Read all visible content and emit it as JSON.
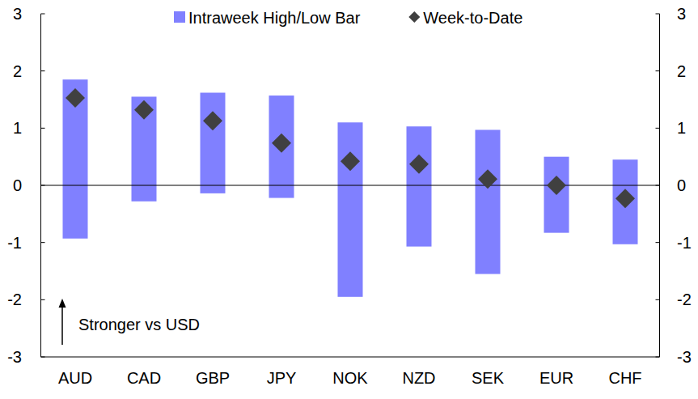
{
  "chart_data": {
    "type": "range_bar",
    "categories": [
      "AUD",
      "CAD",
      "GBP",
      "JPY",
      "NOK",
      "NZD",
      "SEK",
      "EUR",
      "CHF"
    ],
    "series": [
      {
        "name": "Intraweek High/Low Bar",
        "type": "bar",
        "color": "#8080ff",
        "values": [
          1.85,
          1.55,
          1.62,
          1.57,
          1.1,
          1.03,
          0.97,
          0.5,
          0.45
        ],
        "low": [
          -0.93,
          -0.28,
          -0.14,
          -0.22,
          -1.95,
          -1.07,
          -1.55,
          -0.83,
          -1.03
        ]
      },
      {
        "name": "Week-to-Date",
        "type": "scatter",
        "marker": "diamond",
        "color": "#404040",
        "values": [
          1.53,
          1.32,
          1.13,
          0.74,
          0.42,
          0.37,
          0.11,
          0.0,
          -0.23
        ]
      }
    ],
    "ylim": [
      -3,
      3
    ],
    "yticks": [
      -3,
      -2,
      -1,
      0,
      1,
      2,
      3
    ],
    "y2lim": [
      -3,
      3
    ],
    "y2ticks": [
      -3,
      -2,
      -1,
      0,
      1,
      2,
      3
    ],
    "annotations": [
      {
        "text": "Stronger vs USD"
      }
    ],
    "legend": "top",
    "grid": false
  }
}
